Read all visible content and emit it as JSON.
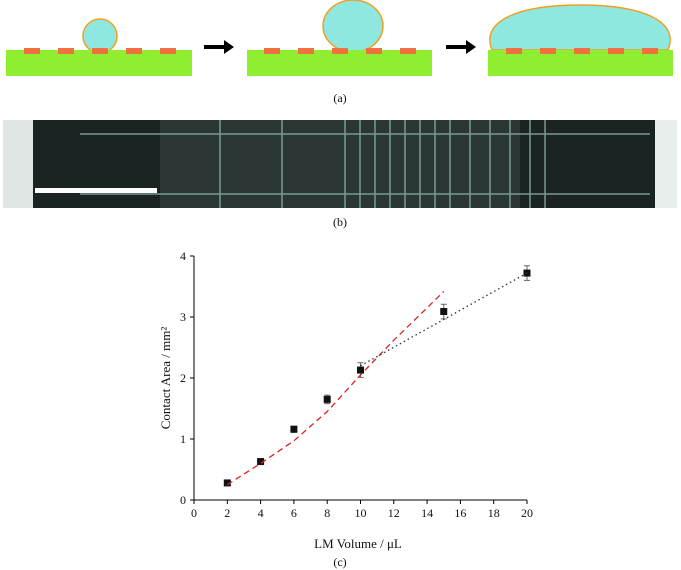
{
  "panels": {
    "a": "(a)",
    "b": "(b)",
    "c": "(c)"
  },
  "chart_data": {
    "type": "scatter",
    "xlabel": "LM Volume / μL",
    "ylabel": "Contact Area / mm²",
    "xlim": [
      0,
      20
    ],
    "xticks": [
      0,
      2,
      4,
      6,
      8,
      10,
      12,
      14,
      16,
      18,
      20
    ],
    "ylim": [
      0,
      4
    ],
    "yticks": [
      0,
      1,
      2,
      3,
      4
    ],
    "series": [
      {
        "style": "markers",
        "color": "#111111",
        "x": [
          2,
          4,
          6,
          8,
          10,
          15,
          20
        ],
        "values": [
          0.28,
          0.63,
          1.16,
          1.65,
          2.13,
          3.09,
          3.72
        ],
        "errors": [
          0.03,
          0.04,
          0.05,
          0.07,
          0.12,
          0.12,
          0.12
        ]
      },
      {
        "style": "dashed",
        "color": "#e02020",
        "x": [
          2,
          4,
          6,
          8,
          10,
          12,
          14,
          15
        ],
        "values": [
          0.25,
          0.6,
          0.97,
          1.45,
          2.05,
          2.62,
          3.15,
          3.42
        ]
      },
      {
        "style": "dotted",
        "color": "#333333",
        "x": [
          10,
          20
        ],
        "values": [
          2.2,
          3.72
        ]
      }
    ]
  }
}
